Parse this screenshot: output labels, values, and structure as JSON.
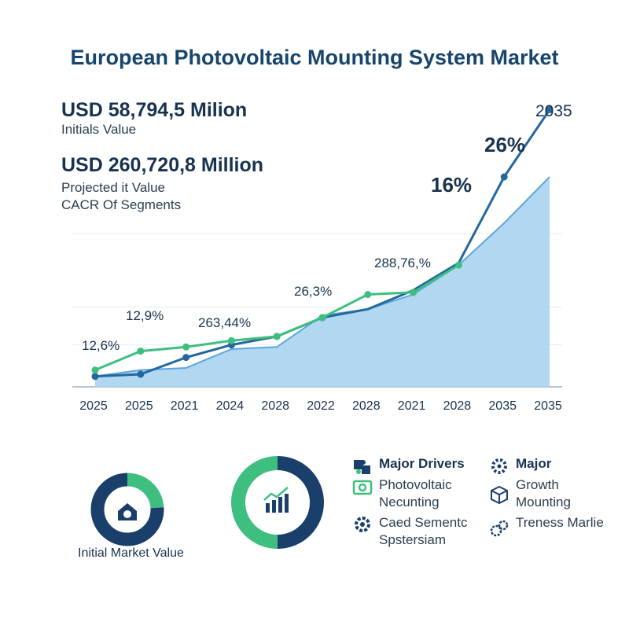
{
  "title": "European Photovoltaic Mounting System Market",
  "kpis": {
    "initial_value": "USD 58,794,5 Milion",
    "initial_label": "Initials Value",
    "projected_value": "USD 260,720,8 Million",
    "projected_label": "Projected it Value",
    "cagr_label": "CACR Of Segments"
  },
  "chart_data": {
    "type": "line",
    "categories": [
      "2025",
      "2025",
      "2021",
      "2024",
      "2028",
      "2022",
      "2028",
      "2021",
      "2028",
      "2035",
      "2035"
    ],
    "ylim": [
      0,
      100
    ],
    "grid": true,
    "series": [
      {
        "values": [
          8,
          17,
          19,
          22,
          24,
          33,
          44,
          45,
          58,
          null,
          null
        ],
        "color": "#3fbf7f"
      },
      {
        "values": [
          5,
          6,
          14,
          20,
          24,
          33,
          37,
          46,
          59,
          100,
          132
        ],
        "color": "#24679e"
      },
      {
        "values": [
          5,
          8,
          9,
          18,
          19,
          34,
          37,
          44,
          58,
          78,
          100
        ],
        "color": "#a9d3ef",
        "style": "area"
      }
    ],
    "annotations": [
      "12,6%",
      "12,9%",
      "263,44%",
      "26,3%",
      "288,76,%",
      "16%",
      "26%",
      "2035"
    ]
  },
  "donuts": [
    {
      "segments": [
        0.24,
        0.76
      ],
      "colors": [
        "#3fbf7f",
        "#1b3f6b"
      ],
      "icon": "euro-house-icon",
      "caption": "Initial Market Value"
    },
    {
      "segments": [
        0.5,
        0.5
      ],
      "colors": [
        "#1b3f6b",
        "#3fbf7f"
      ],
      "icon": "bar-chart-growth-icon"
    }
  ],
  "legend": {
    "col1_title": "Major Drivers",
    "col1_items": [
      {
        "icon": "solar-panel-icon",
        "label": "Photovoltaic Necunting"
      },
      {
        "icon": "gear-icon",
        "label": "Caed Sementc Spstersiam"
      }
    ],
    "col2_title": "Major",
    "col2_items": [
      {
        "icon": "cube-icon",
        "label": "Growth Mounting"
      },
      {
        "icon": "gears-icon",
        "label": "Treness Marlie"
      }
    ]
  }
}
